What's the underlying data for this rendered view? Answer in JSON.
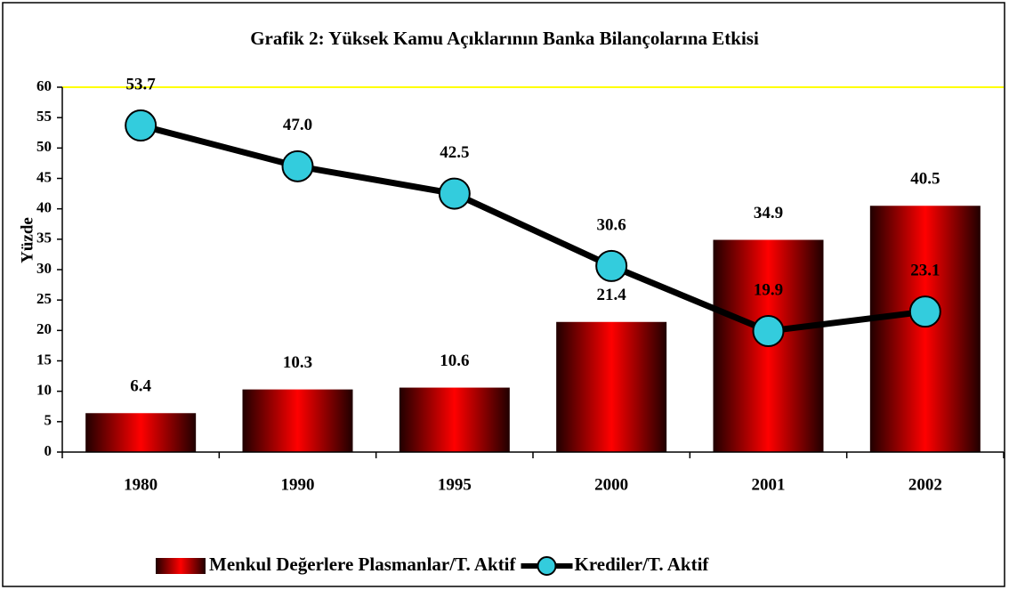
{
  "chart_data": {
    "type": "bar+line",
    "title": "Grafik 2: Yüksek Kamu Açıklarının Banka Bilançolarına Etkisi",
    "y_label": "Yüzde",
    "categories": [
      "1980",
      "1990",
      "1995",
      "2000",
      "2001",
      "2002"
    ],
    "series": [
      {
        "name": "Menkul Değerlere Plasmanlar/T. Aktif",
        "type": "bar",
        "color": "#e60000",
        "values": [
          6.4,
          10.3,
          10.6,
          21.4,
          34.9,
          40.5
        ]
      },
      {
        "name": "Krediler/T. Aktif",
        "type": "line",
        "color": "#000000",
        "marker_color": "#33ccdd",
        "values": [
          53.7,
          47.0,
          42.5,
          30.6,
          19.9,
          23.1
        ],
        "value_labels": [
          "53.7",
          "47.0",
          "42.5",
          "30.6",
          "19.9",
          "23.1"
        ]
      }
    ],
    "ylim": [
      0,
      60
    ],
    "yticks": [
      0,
      5,
      10,
      15,
      20,
      25,
      30,
      35,
      40,
      45,
      50,
      55,
      60
    ]
  }
}
